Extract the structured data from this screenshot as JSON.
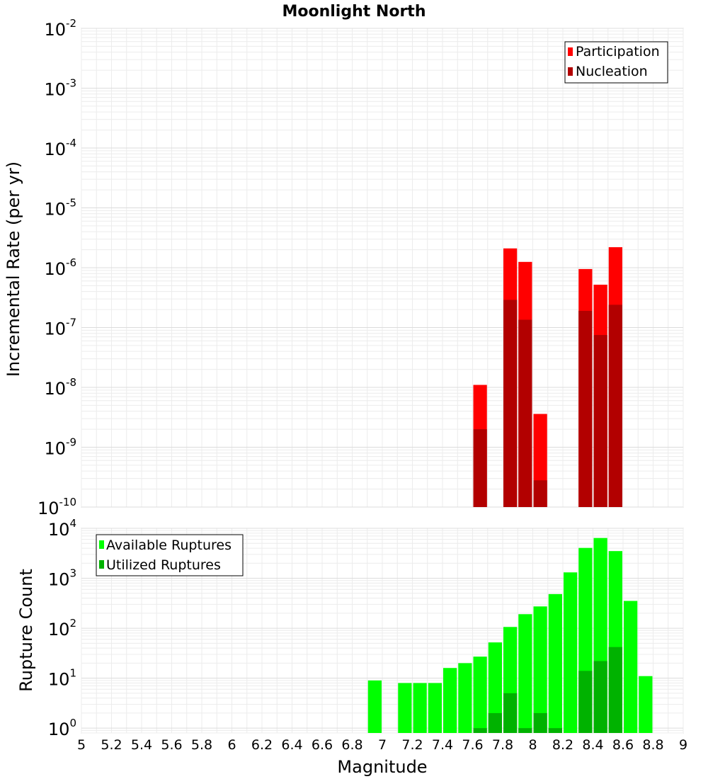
{
  "title": "Moonlight North",
  "x_axis": {
    "label": "Magnitude",
    "range": [
      5,
      9
    ],
    "ticks": [
      5,
      5.2,
      5.4,
      5.6,
      5.8,
      6,
      6.2,
      6.4,
      6.6,
      6.8,
      7,
      7.2,
      7.4,
      7.6,
      7.8,
      8,
      8.2,
      8.4,
      8.6,
      8.8,
      9
    ],
    "tick_labels": [
      "5",
      "5.2",
      "5.4",
      "5.6",
      "5.8",
      "6",
      "6.2",
      "6.4",
      "6.6",
      "6.8",
      "7",
      "7.2",
      "7.4",
      "7.6",
      "7.8",
      "8",
      "8.2",
      "8.4",
      "8.6",
      "8.8",
      "9"
    ]
  },
  "chart_data": [
    {
      "type": "bar",
      "ylabel": "Incremental Rate (per yr)",
      "yscale": "log",
      "ylim": [
        1e-10,
        0.01
      ],
      "y_tick_exponents": [
        "-10",
        "-9",
        "-8",
        "-7",
        "-6",
        "-5",
        "-4",
        "-3",
        "-2"
      ],
      "grid": true,
      "legend_position": "top-right",
      "series": [
        {
          "name": "Participation",
          "color": "#ff0000",
          "x": [
            7.65,
            7.85,
            7.95,
            8.05,
            8.35,
            8.45,
            8.55
          ],
          "values": [
            1.1e-08,
            2.1e-06,
            1.25e-06,
            3.6e-09,
            9.5e-07,
            5.2e-07,
            2.2e-06
          ]
        },
        {
          "name": "Nucleation",
          "color": "#b20000",
          "x": [
            7.65,
            7.85,
            7.95,
            8.05,
            8.35,
            8.45,
            8.55
          ],
          "values": [
            2e-09,
            2.9e-07,
            1.35e-07,
            2.8e-10,
            1.9e-07,
            7.5e-08,
            2.4e-07
          ]
        }
      ]
    },
    {
      "type": "bar",
      "ylabel": "Rupture Count",
      "yscale": "log",
      "ylim": [
        0.8,
        10000
      ],
      "y_tick_exponents": [
        "0",
        "1",
        "2",
        "3",
        "4"
      ],
      "grid": true,
      "legend_position": "top-left",
      "series": [
        {
          "name": "Available Ruptures",
          "color": "#00ff00",
          "x": [
            6.95,
            7.15,
            7.25,
            7.35,
            7.45,
            7.55,
            7.65,
            7.75,
            7.85,
            7.95,
            8.05,
            8.15,
            8.25,
            8.35,
            8.45,
            8.55,
            8.65,
            8.75
          ],
          "values": [
            9,
            8,
            8,
            8,
            16,
            20,
            27,
            52,
            106,
            191,
            273,
            482,
            1311,
            4051,
            6401,
            3500,
            352,
            11
          ]
        },
        {
          "name": "Utilized Ruptures",
          "color": "#00b200",
          "x": [
            7.65,
            7.75,
            7.85,
            7.95,
            8.05,
            8.15,
            8.35,
            8.45,
            8.55
          ],
          "values": [
            1,
            2,
            5,
            1,
            2,
            1,
            14,
            22,
            42
          ]
        }
      ]
    }
  ]
}
